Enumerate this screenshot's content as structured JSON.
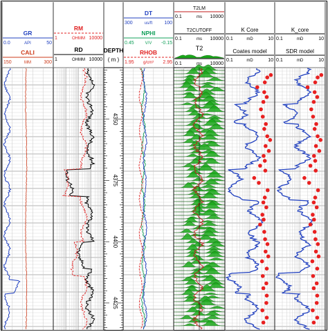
{
  "chart_data": {
    "type": "line",
    "depth_axis": {
      "label": "DEPTH",
      "unit": "( m )",
      "ticks": [
        "4350",
        "4375",
        "4400",
        "4425"
      ],
      "range": [
        4329,
        4436
      ]
    },
    "tracks": [
      {
        "id": "gr-cali",
        "curves": [
          {
            "name": "GR",
            "unit": "API",
            "min": "0.0",
            "max": "50",
            "color": "#1f3fbf"
          },
          {
            "name": "CALI",
            "unit": "MM",
            "min": "150",
            "max": "300",
            "color": "#cc3a1a"
          }
        ]
      },
      {
        "id": "resistivity",
        "curves": [
          {
            "name": "RM",
            "unit": "OHMM",
            "min": "1",
            "max": "10000",
            "color": "#e02020"
          },
          {
            "name": "RD",
            "unit": "OHMM",
            "min": "1",
            "max": "10000",
            "color": "#000000"
          }
        ]
      },
      {
        "id": "porosity",
        "curves": [
          {
            "name": "DT",
            "unit": "us/ft",
            "min": "300",
            "max": "100",
            "color": "#1f3fbf"
          },
          {
            "name": "NPHI",
            "unit": "V/V",
            "min": "0.45",
            "max": "-0.15",
            "color": "#12a05a"
          },
          {
            "name": "RHOB",
            "unit": "g/cm³",
            "min": "1.95",
            "max": "2.95",
            "color": "#e02020"
          }
        ]
      },
      {
        "id": "nmr",
        "curves": [
          {
            "name": "T2LM",
            "unit": "ms",
            "min": "0.1",
            "max": "10000",
            "color": "#c01818"
          },
          {
            "name": "T2CUTOFF",
            "unit": "ms",
            "min": "0.1",
            "max": "10000",
            "color": "#000000"
          },
          {
            "name": "T2",
            "unit": "ms",
            "min": "0.1",
            "max": "10000",
            "color": "#1aa81a"
          }
        ]
      },
      {
        "id": "k-coates",
        "curves": [
          {
            "name": "K Core",
            "unit": "mD",
            "min": "0.1",
            "max": "10",
            "color": "#e02020"
          },
          {
            "name": "Coates model",
            "unit": "mD",
            "min": "0.1",
            "max": "10",
            "color": "#1f3fbf"
          }
        ]
      },
      {
        "id": "k-sdr",
        "curves": [
          {
            "name": "K_core",
            "unit": "mD",
            "min": "0.1",
            "max": "10",
            "color": "#e02020"
          },
          {
            "name": "SDR model",
            "unit": "mD",
            "min": "0.1",
            "max": "10",
            "color": "#1f3fbf"
          }
        ]
      }
    ],
    "k_core_samples": [
      {
        "depth": 4332,
        "k": 7
      },
      {
        "depth": 4333,
        "k": 5
      },
      {
        "depth": 4335,
        "k": 4
      },
      {
        "depth": 4337,
        "k": 2
      },
      {
        "depth": 4339,
        "k": 3.8
      },
      {
        "depth": 4341,
        "k": 4.8
      },
      {
        "depth": 4343,
        "k": 3.5
      },
      {
        "depth": 4346,
        "k": 2.8
      },
      {
        "depth": 4349,
        "k": 3.3
      },
      {
        "depth": 4352,
        "k": 4.4
      },
      {
        "depth": 4354,
        "k": 3.8
      },
      {
        "depth": 4357,
        "k": 5
      },
      {
        "depth": 4358.5,
        "k": 6.5
      },
      {
        "depth": 4361,
        "k": 4.3
      },
      {
        "depth": 4363,
        "k": 5.8
      },
      {
        "depth": 4365,
        "k": 3.6
      },
      {
        "depth": 4367,
        "k": 4
      },
      {
        "depth": 4369,
        "k": 2.6
      },
      {
        "depth": 4371,
        "k": 4.2
      },
      {
        "depth": 4374,
        "k": 1.5
      },
      {
        "depth": 4376,
        "k": 2.3
      },
      {
        "depth": 4379,
        "k": 5.2
      },
      {
        "depth": 4382,
        "k": 4
      },
      {
        "depth": 4384,
        "k": 3.5
      },
      {
        "depth": 4386,
        "k": 4.6
      },
      {
        "depth": 4389,
        "k": 3.2
      },
      {
        "depth": 4391,
        "k": 3.6
      },
      {
        "depth": 4393,
        "k": 2.6
      },
      {
        "depth": 4396,
        "k": 3.8
      },
      {
        "depth": 4399,
        "k": 4.1
      },
      {
        "depth": 4401,
        "k": 5.1
      },
      {
        "depth": 4404,
        "k": 4.3
      },
      {
        "depth": 4406,
        "k": 5.5
      },
      {
        "depth": 4408,
        "k": 3.1
      },
      {
        "depth": 4411,
        "k": 4.8
      },
      {
        "depth": 4414,
        "k": 3.3
      },
      {
        "depth": 4417,
        "k": 4.6
      },
      {
        "depth": 4419,
        "k": 3.5
      },
      {
        "depth": 4422,
        "k": 4.8
      },
      {
        "depth": 4425,
        "k": 4.6
      },
      {
        "depth": 4428,
        "k": 3.2
      },
      {
        "depth": 4431,
        "k": 4.8
      },
      {
        "depth": 4433,
        "k": 3.5
      }
    ]
  }
}
